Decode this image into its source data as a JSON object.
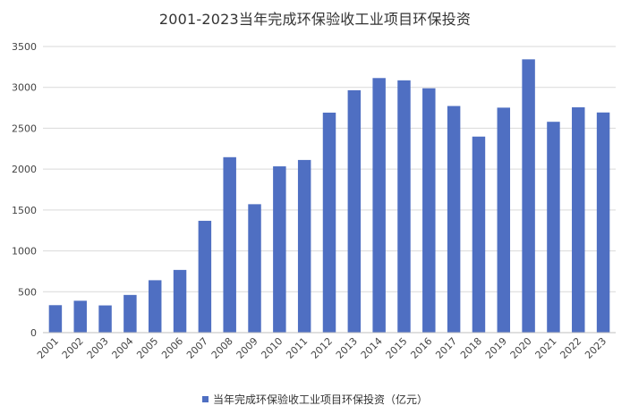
{
  "chart_data": {
    "type": "bar",
    "title": "2001-2023当年完成环保验收工业项目环保投资",
    "xlabel": "",
    "ylabel": "",
    "ylim": [
      0,
      3500
    ],
    "yticks": [
      0,
      500,
      1000,
      1500,
      2000,
      2500,
      3000,
      3500
    ],
    "grid": true,
    "legend_position": "bottom",
    "bar_color": "#4f6fc2",
    "categories": [
      "2001",
      "2002",
      "2003",
      "2004",
      "2005",
      "2006",
      "2007",
      "2008",
      "2009",
      "2010",
      "2011",
      "2012",
      "2013",
      "2014",
      "2015",
      "2016",
      "2017",
      "2018",
      "2019",
      "2020",
      "2021",
      "2022",
      "2023"
    ],
    "series": [
      {
        "name": "当年完成环保验收工业项目环保投资（亿元）",
        "values": [
          336,
          390,
          333,
          461,
          641,
          767,
          1368,
          2146,
          1571,
          2034,
          2112,
          2691,
          2965,
          3114,
          3086,
          2989,
          2772,
          2398,
          2752,
          3343,
          2579,
          2756,
          2693
        ]
      }
    ]
  }
}
